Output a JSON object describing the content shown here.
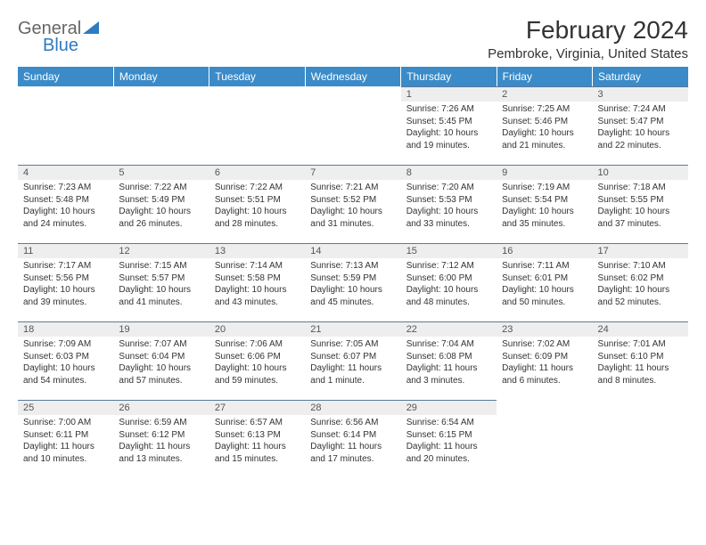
{
  "logo": {
    "text1": "General",
    "text2": "Blue",
    "triangle_color": "#2f7bbf"
  },
  "title": "February 2024",
  "subtitle": "Pembroke, Virginia, United States",
  "colors": {
    "header_bg": "#3b8bc8",
    "header_text": "#ffffff",
    "daynum_bg": "#eeeeee",
    "rule": "#5a7a9a",
    "body_text": "#333333"
  },
  "weekdays": [
    "Sunday",
    "Monday",
    "Tuesday",
    "Wednesday",
    "Thursday",
    "Friday",
    "Saturday"
  ],
  "weeks": [
    [
      null,
      null,
      null,
      null,
      {
        "n": "1",
        "sunrise": "7:26 AM",
        "sunset": "5:45 PM",
        "dh": "10",
        "dm": "19"
      },
      {
        "n": "2",
        "sunrise": "7:25 AM",
        "sunset": "5:46 PM",
        "dh": "10",
        "dm": "21"
      },
      {
        "n": "3",
        "sunrise": "7:24 AM",
        "sunset": "5:47 PM",
        "dh": "10",
        "dm": "22"
      }
    ],
    [
      {
        "n": "4",
        "sunrise": "7:23 AM",
        "sunset": "5:48 PM",
        "dh": "10",
        "dm": "24"
      },
      {
        "n": "5",
        "sunrise": "7:22 AM",
        "sunset": "5:49 PM",
        "dh": "10",
        "dm": "26"
      },
      {
        "n": "6",
        "sunrise": "7:22 AM",
        "sunset": "5:51 PM",
        "dh": "10",
        "dm": "28"
      },
      {
        "n": "7",
        "sunrise": "7:21 AM",
        "sunset": "5:52 PM",
        "dh": "10",
        "dm": "31"
      },
      {
        "n": "8",
        "sunrise": "7:20 AM",
        "sunset": "5:53 PM",
        "dh": "10",
        "dm": "33"
      },
      {
        "n": "9",
        "sunrise": "7:19 AM",
        "sunset": "5:54 PM",
        "dh": "10",
        "dm": "35"
      },
      {
        "n": "10",
        "sunrise": "7:18 AM",
        "sunset": "5:55 PM",
        "dh": "10",
        "dm": "37"
      }
    ],
    [
      {
        "n": "11",
        "sunrise": "7:17 AM",
        "sunset": "5:56 PM",
        "dh": "10",
        "dm": "39"
      },
      {
        "n": "12",
        "sunrise": "7:15 AM",
        "sunset": "5:57 PM",
        "dh": "10",
        "dm": "41"
      },
      {
        "n": "13",
        "sunrise": "7:14 AM",
        "sunset": "5:58 PM",
        "dh": "10",
        "dm": "43"
      },
      {
        "n": "14",
        "sunrise": "7:13 AM",
        "sunset": "5:59 PM",
        "dh": "10",
        "dm": "45"
      },
      {
        "n": "15",
        "sunrise": "7:12 AM",
        "sunset": "6:00 PM",
        "dh": "10",
        "dm": "48"
      },
      {
        "n": "16",
        "sunrise": "7:11 AM",
        "sunset": "6:01 PM",
        "dh": "10",
        "dm": "50"
      },
      {
        "n": "17",
        "sunrise": "7:10 AM",
        "sunset": "6:02 PM",
        "dh": "10",
        "dm": "52"
      }
    ],
    [
      {
        "n": "18",
        "sunrise": "7:09 AM",
        "sunset": "6:03 PM",
        "dh": "10",
        "dm": "54"
      },
      {
        "n": "19",
        "sunrise": "7:07 AM",
        "sunset": "6:04 PM",
        "dh": "10",
        "dm": "57"
      },
      {
        "n": "20",
        "sunrise": "7:06 AM",
        "sunset": "6:06 PM",
        "dh": "10",
        "dm": "59"
      },
      {
        "n": "21",
        "sunrise": "7:05 AM",
        "sunset": "6:07 PM",
        "dh": "11",
        "dm": "1",
        "singular": true
      },
      {
        "n": "22",
        "sunrise": "7:04 AM",
        "sunset": "6:08 PM",
        "dh": "11",
        "dm": "3"
      },
      {
        "n": "23",
        "sunrise": "7:02 AM",
        "sunset": "6:09 PM",
        "dh": "11",
        "dm": "6"
      },
      {
        "n": "24",
        "sunrise": "7:01 AM",
        "sunset": "6:10 PM",
        "dh": "11",
        "dm": "8"
      }
    ],
    [
      {
        "n": "25",
        "sunrise": "7:00 AM",
        "sunset": "6:11 PM",
        "dh": "11",
        "dm": "10"
      },
      {
        "n": "26",
        "sunrise": "6:59 AM",
        "sunset": "6:12 PM",
        "dh": "11",
        "dm": "13"
      },
      {
        "n": "27",
        "sunrise": "6:57 AM",
        "sunset": "6:13 PM",
        "dh": "11",
        "dm": "15"
      },
      {
        "n": "28",
        "sunrise": "6:56 AM",
        "sunset": "6:14 PM",
        "dh": "11",
        "dm": "17"
      },
      {
        "n": "29",
        "sunrise": "6:54 AM",
        "sunset": "6:15 PM",
        "dh": "11",
        "dm": "20"
      },
      null,
      null
    ]
  ],
  "labels": {
    "sunrise": "Sunrise:",
    "sunset": "Sunset:",
    "daylight": "Daylight:",
    "hours": "hours",
    "and": "and",
    "minutes": "minutes.",
    "minute": "minute."
  }
}
